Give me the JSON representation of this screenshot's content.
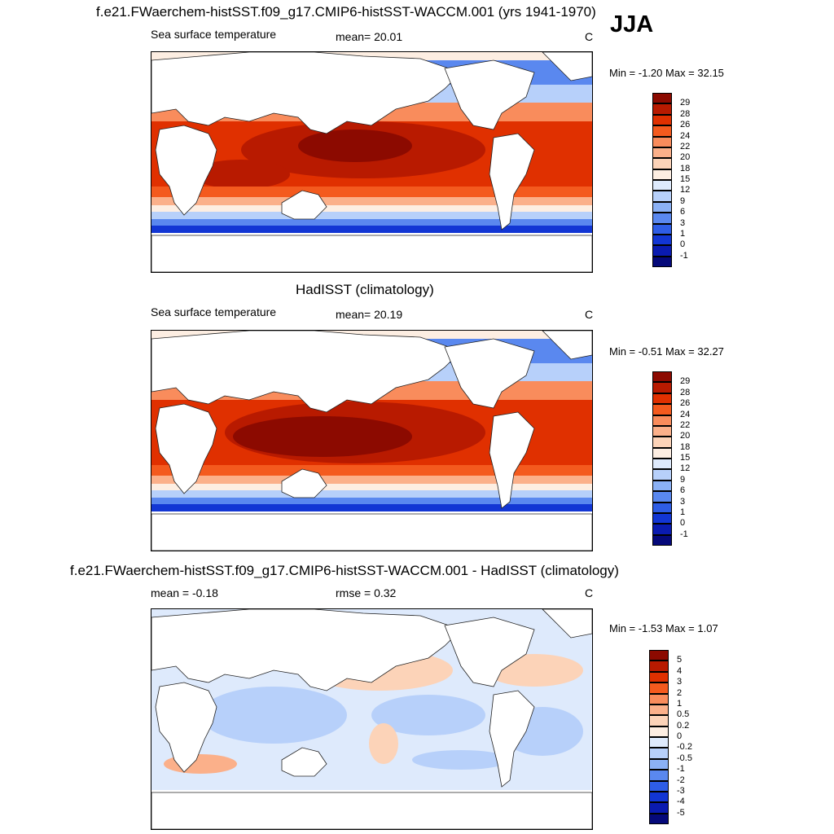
{
  "header": {
    "title": "f.e21.FWaerchem-histSST.f09_g17.CMIP6-histSST-WACCM.001 (yrs 1941-1970)",
    "season": "JJA"
  },
  "panels": [
    {
      "id": "model",
      "title": "",
      "left_label": "Sea surface temperature",
      "mean_label": "mean=  20.01",
      "units": "C",
      "minmax": "Min =  -1.20 Max =  32.15",
      "colorbar": {
        "levels": [
          "29",
          "28",
          "26",
          "24",
          "22",
          "20",
          "18",
          "15",
          "12",
          "9",
          "6",
          "3",
          "1",
          "0",
          "-1"
        ],
        "colors": [
          "#8c0a00",
          "#b81a00",
          "#e03000",
          "#f45a1e",
          "#f98c5c",
          "#fbb08a",
          "#fcd3b8",
          "#fdeee2",
          "#deeafc",
          "#b7d0fa",
          "#8bb1f5",
          "#5a88ef",
          "#2e5de6",
          "#1236d4",
          "#0a1bb0",
          "#05097a"
        ]
      }
    },
    {
      "id": "obs",
      "title": "HadISST (climatology)",
      "left_label": "Sea surface temperature",
      "mean_label": "mean=  20.19",
      "units": "C",
      "minmax": "Min =  -0.51 Max =  32.27",
      "colorbar": {
        "levels": [
          "29",
          "28",
          "26",
          "24",
          "22",
          "20",
          "18",
          "15",
          "12",
          "9",
          "6",
          "3",
          "1",
          "0",
          "-1"
        ],
        "colors": [
          "#8c0a00",
          "#b81a00",
          "#e03000",
          "#f45a1e",
          "#f98c5c",
          "#fbb08a",
          "#fcd3b8",
          "#fdeee2",
          "#deeafc",
          "#b7d0fa",
          "#8bb1f5",
          "#5a88ef",
          "#2e5de6",
          "#1236d4",
          "#0a1bb0",
          "#05097a"
        ]
      }
    },
    {
      "id": "diff",
      "title": "f.e21.FWaerchem-histSST.f09_g17.CMIP6-histSST-WACCM.001 - HadISST (climatology)",
      "left_label": "mean =  -0.18",
      "mean_label": "rmse =   0.32",
      "units": "C",
      "minmax": "Min =  -1.53 Max =   1.07",
      "colorbar": {
        "levels": [
          "5",
          "4",
          "3",
          "2",
          "1",
          "0.5",
          "0.2",
          "0",
          "-0.2",
          "-0.5",
          "-1",
          "-2",
          "-3",
          "-4",
          "-5"
        ],
        "colors": [
          "#8c0a00",
          "#b81a00",
          "#e03000",
          "#f45a1e",
          "#f98c5c",
          "#fbb08a",
          "#fcd3b8",
          "#fdeee2",
          "#deeafc",
          "#b7d0fa",
          "#8bb1f5",
          "#5a88ef",
          "#2e5de6",
          "#1236d4",
          "#0a1bb0",
          "#05097a"
        ]
      }
    }
  ]
}
